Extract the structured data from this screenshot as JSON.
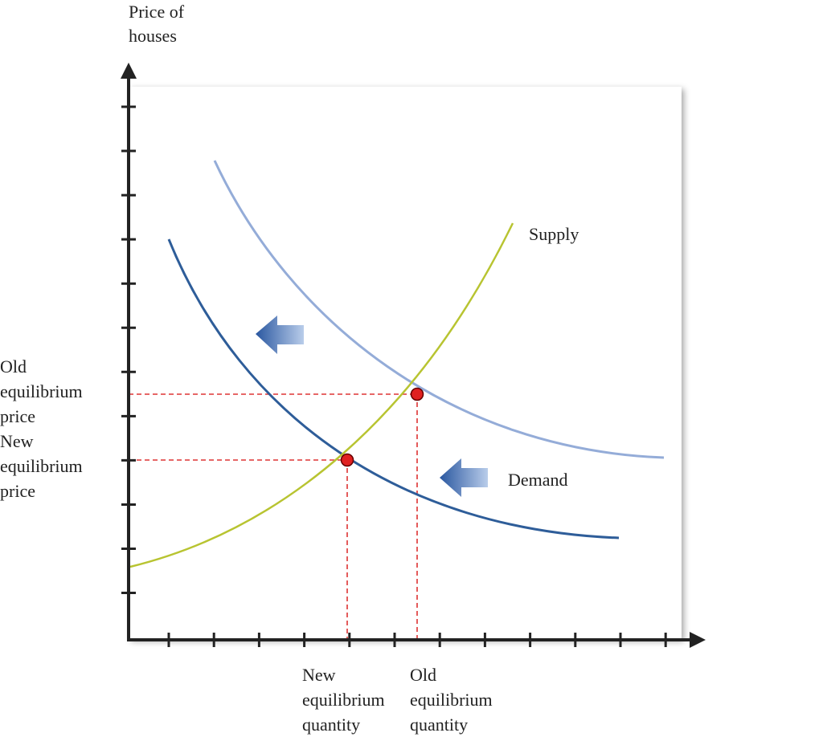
{
  "y_axis_label": [
    "Price of",
    "houses"
  ],
  "curves": {
    "supply": "Supply",
    "demand": "Demand"
  },
  "old_price": [
    "Old",
    "equilibrium",
    "price"
  ],
  "new_price": [
    "New",
    "equilibrium",
    "price"
  ],
  "new_quantity": [
    "New",
    "equilibrium",
    "quantity"
  ],
  "old_quantity": [
    "Old",
    "equilibrium",
    "quantity"
  ]
}
